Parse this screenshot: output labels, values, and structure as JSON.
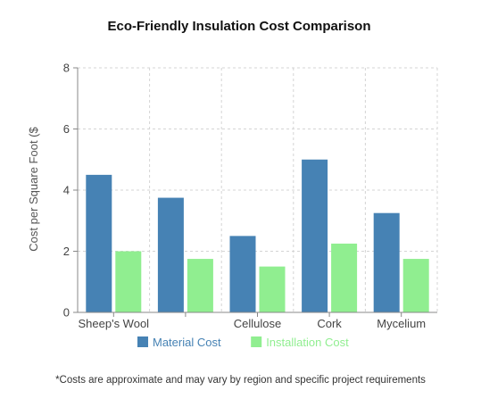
{
  "chart_data": {
    "type": "bar",
    "title": "Eco-Friendly Insulation Cost Comparison",
    "xlabel": "",
    "ylabel": "Cost per Square Foot ($",
    "categories": [
      "Sheep's Wool",
      "",
      "Cellulose",
      "Cork",
      "Mycelium"
    ],
    "series": [
      {
        "name": "Material Cost",
        "color": "#4682b4",
        "values": [
          4.5,
          3.75,
          2.5,
          5.0,
          3.25
        ]
      },
      {
        "name": "Installation Cost",
        "color": "#90ee90",
        "values": [
          2.0,
          1.75,
          1.5,
          2.25,
          1.75
        ]
      }
    ],
    "ylim": [
      0,
      8
    ],
    "yticks": [
      0,
      2,
      4,
      6,
      8
    ],
    "grid": true,
    "legend_position": "bottom"
  },
  "footnote": "*Costs are approximate and may vary by region and specific project requirements"
}
